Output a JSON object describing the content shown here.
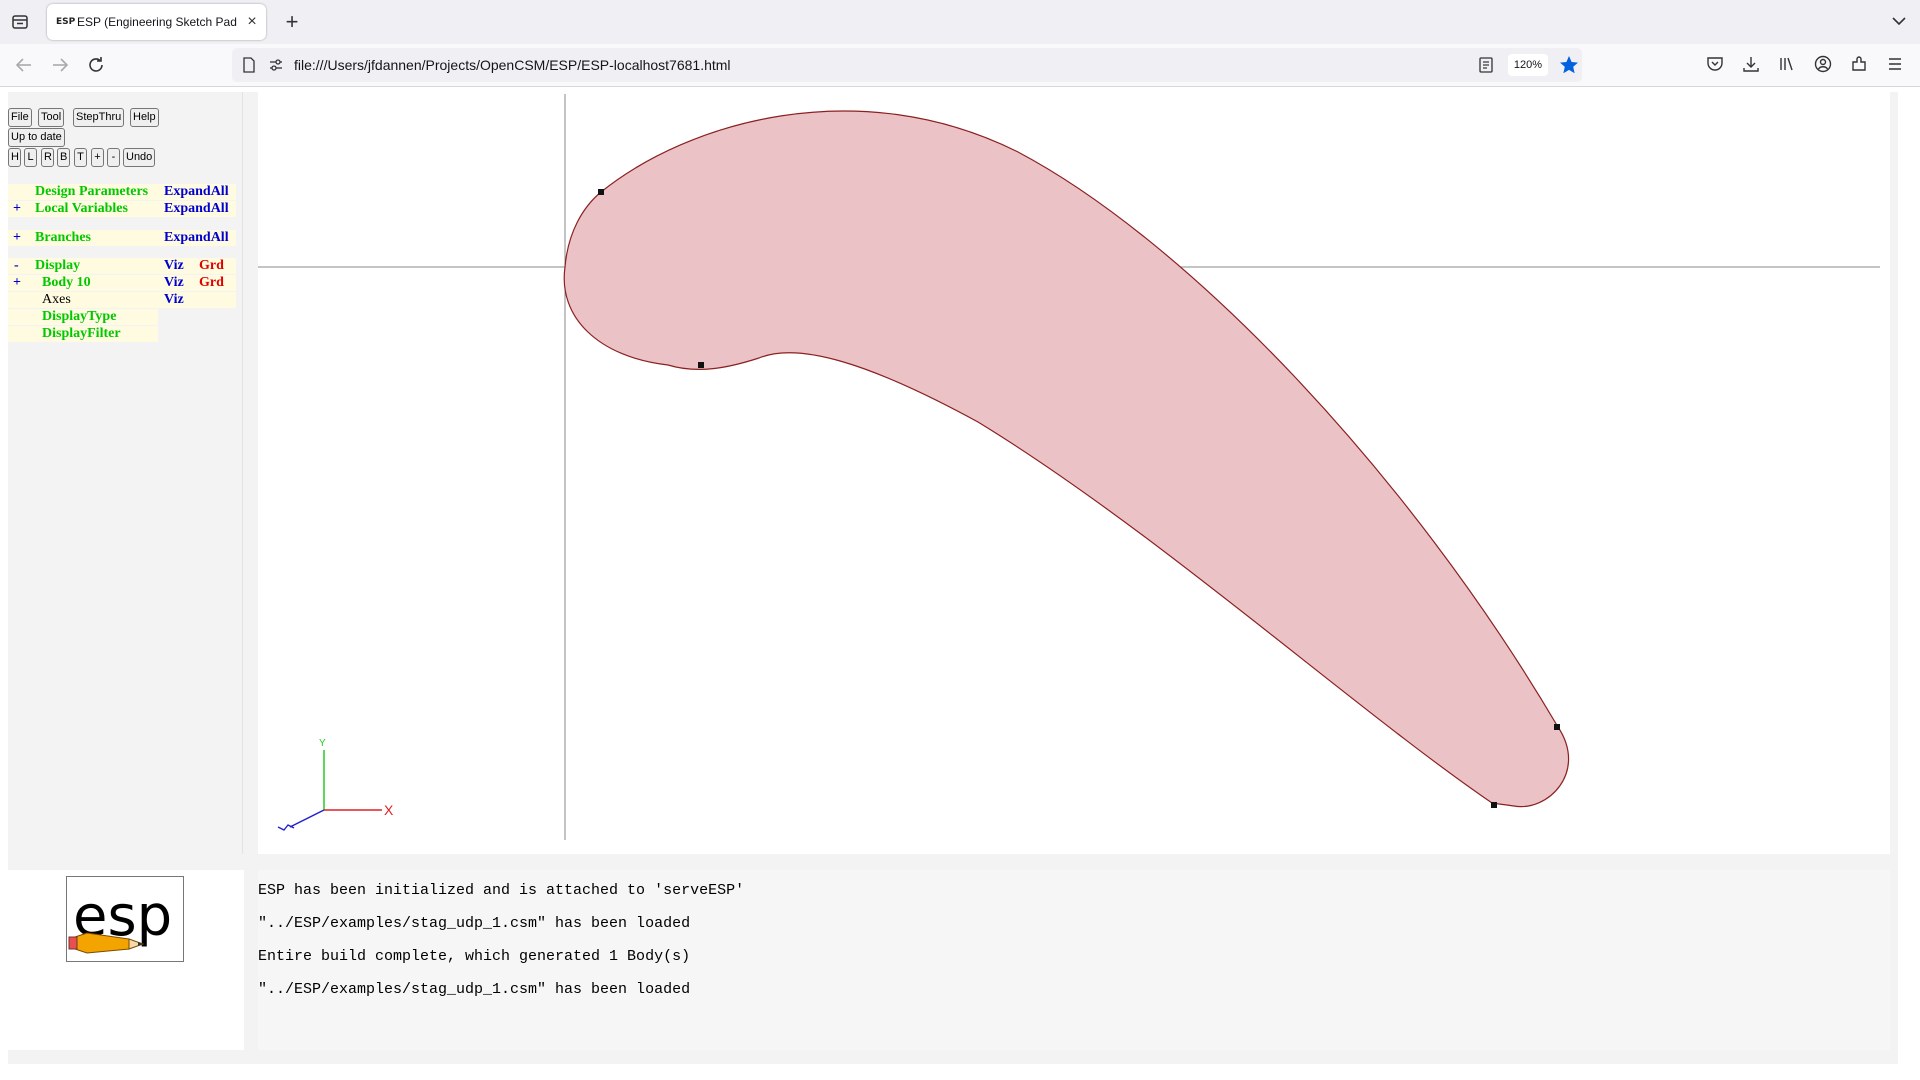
{
  "browser": {
    "tab_title": "ESP (Engineering Sketch Pad, V",
    "tab_favicon_text": "ESP",
    "new_tab_label": "+",
    "close_label": "×",
    "url": "file:///Users/jfdannen/Projects/OpenCSM/ESP/ESP-localhost7681.html",
    "zoom": "120%"
  },
  "toolbar": {
    "file": "File",
    "tool": "Tool",
    "stepthru": "StepThru",
    "help": "Help",
    "status": "Up to date",
    "view_h": "H",
    "view_l": "L",
    "view_r": "R",
    "view_b": "B",
    "view_t": "T",
    "zoom_in": "+",
    "zoom_out": "-",
    "undo": "Undo"
  },
  "tree": {
    "design_params": {
      "label": "Design Parameters",
      "action": "ExpandAll"
    },
    "local_vars": {
      "expander": "+",
      "label": "Local Variables",
      "action": "ExpandAll"
    },
    "branches": {
      "expander": "+",
      "label": "Branches",
      "action": "ExpandAll"
    },
    "display": {
      "expander": "-",
      "label": "Display",
      "viz": "Viz",
      "grd": "Grd"
    },
    "body": {
      "expander": "+",
      "label": "Body 10",
      "viz": "Viz",
      "grd": "Grd"
    },
    "axes": {
      "label": "Axes",
      "viz": "Viz"
    },
    "display_type": {
      "label": "DisplayType"
    },
    "display_filter": {
      "label": "DisplayFilter"
    }
  },
  "triad": {
    "x_label": "X",
    "y_label": "Y"
  },
  "logo_text": "esp",
  "messages": [
    "ESP has been initialized and is attached to 'serveESP'",
    "\"../ESP/examples/stag_udp_1.csm\" has been loaded",
    "Entire build complete, which generated 1 Body(s)",
    "\"../ESP/examples/stag_udp_1.csm\" has been loaded"
  ],
  "colors": {
    "body_fill": "#ebc3c7",
    "body_edge": "#8b2020",
    "tree_label": "#00c800",
    "tree_link": "#0000d0",
    "tree_grd": "#e00000",
    "tree_row_bg": "#fffbe0",
    "bookmark": "#0060df"
  }
}
